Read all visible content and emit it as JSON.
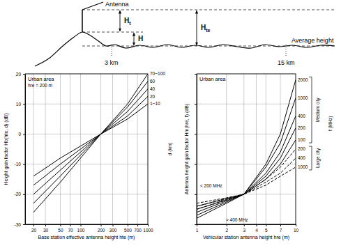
{
  "diagram": {
    "antenna": "Antenna",
    "ht": "Ht",
    "h": "H",
    "hte": "Hte",
    "average_height": "Average height",
    "distance_1": "3 km",
    "distance_2": "15 km"
  },
  "chart_data": [
    {
      "type": "line",
      "title": "Urban area",
      "x_label": "Base station effective antenna height hte (m)",
      "y_label": "Height gain factor Hb(hte, d) (dB)",
      "annotations": [
        "hre = 200 m",
        "d (km)"
      ],
      "log": "x",
      "grid": true,
      "x": [
        20,
        50,
        100,
        200,
        500,
        1000
      ],
      "xlim": [
        15,
        1000
      ],
      "xticks": [
        20,
        30,
        50,
        70,
        100,
        200,
        300,
        500,
        700,
        1000
      ],
      "ylim": [
        -30,
        20
      ],
      "yticks": [
        -30,
        -20,
        -10,
        0,
        10,
        20
      ],
      "series": [
        {
          "name": "1~10",
          "color": "#000000",
          "line_style": "solid",
          "values": [
            -14,
            -8,
            -4,
            0,
            5,
            10
          ]
        },
        {
          "name": "20",
          "color": "#000000",
          "line_style": "solid",
          "values": [
            -17,
            -10,
            -5,
            0,
            6,
            12.5
          ]
        },
        {
          "name": "40",
          "color": "#000000",
          "line_style": "solid",
          "values": [
            -20,
            -12,
            -6,
            0,
            7.5,
            15
          ]
        },
        {
          "name": "60",
          "color": "#000000",
          "line_style": "solid",
          "values": [
            -23,
            -14,
            -7,
            0,
            9,
            17.5
          ]
        },
        {
          "name": "70~100",
          "color": "#000000",
          "line_style": "solid",
          "values": [
            -26,
            -16,
            -8,
            0,
            10,
            20
          ]
        }
      ]
    },
    {
      "type": "line",
      "title": "Urban area",
      "x_label": "Vehicular station antenna height hre (m)",
      "y_label": "Antenna height gain factor Hm(hre, f) (dB)",
      "annotations": [
        "Medium city",
        "Large city",
        "f (MHz)",
        "< 200 MHz",
        "> 400 MHz"
      ],
      "log": "x",
      "grid": true,
      "tick_labels": "x",
      "x": [
        1,
        2,
        3,
        5,
        7,
        10
      ],
      "xlim": [
        1,
        10
      ],
      "xticks": [
        1,
        2,
        3,
        4,
        5,
        7,
        10
      ],
      "ylim": [
        -5,
        20
      ],
      "yticks": [
        -5,
        0,
        5,
        10,
        15,
        20
      ],
      "series": [
        {
          "name": "2000",
          "color": "#000000",
          "line_style": "solid",
          "values": [
            -4,
            -1.5,
            0,
            5,
            10,
            19
          ]
        },
        {
          "name": "1000",
          "color": "#000000",
          "line_style": "solid",
          "values": [
            -3.5,
            -1.3,
            0,
            4.5,
            8.5,
            16
          ]
        },
        {
          "name": "400",
          "color": "#000000",
          "line_style": "solid",
          "values": [
            -3,
            -1.1,
            0,
            3.5,
            7,
            13
          ]
        },
        {
          "name": "200",
          "color": "#000000",
          "line_style": "solid",
          "values": [
            -2.5,
            -0.9,
            0,
            3,
            6,
            11
          ]
        },
        {
          "name": "100",
          "color": "#000000",
          "line_style": "solid",
          "values": [
            -2,
            -0.7,
            0,
            2.5,
            5,
            9
          ]
        },
        {
          "name": "200",
          "color": "#000000",
          "line_style": "dashed",
          "values": [
            -1.5,
            -0.6,
            0,
            2.5,
            4.5,
            7.5
          ]
        },
        {
          "name": "400",
          "color": "#000000",
          "line_style": "dashed",
          "values": [
            -2,
            -0.8,
            0,
            2,
            3.5,
            6
          ]
        },
        {
          "name": "1000",
          "color": "#000000",
          "line_style": "dashed",
          "values": [
            -2.5,
            -1,
            0,
            1.5,
            3,
            4.5
          ]
        }
      ]
    }
  ]
}
